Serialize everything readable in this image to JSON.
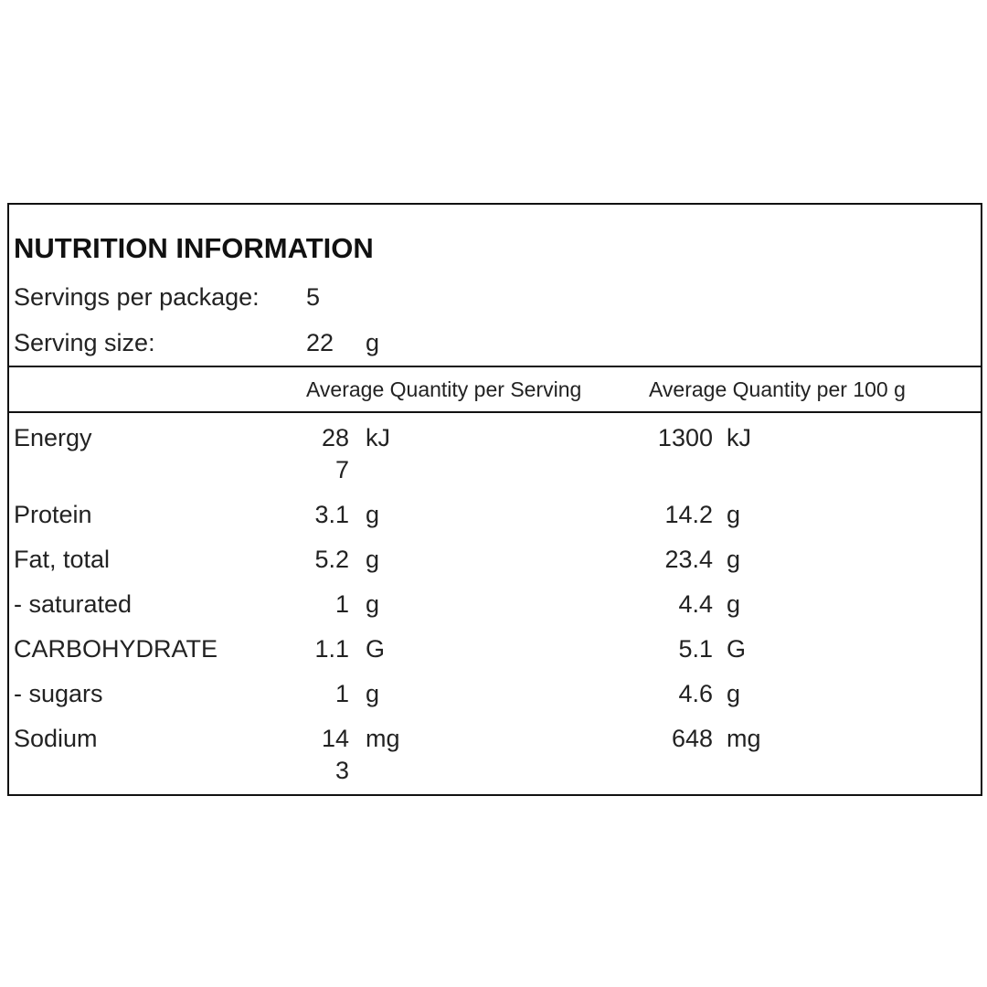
{
  "title": "NUTRITION INFORMATION",
  "servings": [
    {
      "label": "Servings per package:",
      "value": "5"
    },
    {
      "label": "Serving size:",
      "value": "22",
      "unit": "g"
    }
  ],
  "table": {
    "header": [
      "Average Quantity per Serving",
      "Average Quantity per 100 g"
    ],
    "rows": [
      {
        "name": "Energy",
        "serving": "287",
        "serving_unit": "kJ",
        "per100": "1300",
        "per100_unit": "kJ"
      },
      {
        "name": "Protein",
        "serving": "3.1",
        "serving_unit": "g",
        "per100": "14.2",
        "per100_unit": "g"
      },
      {
        "name": "Fat, total",
        "serving": "5.2",
        "serving_unit": "g",
        "per100": "23.4",
        "per100_unit": "g"
      },
      {
        "name": "- saturated",
        "serving": "1",
        "serving_unit": "g",
        "per100": "4.4",
        "per100_unit": "g"
      },
      {
        "name": "CARBOHYDRATE",
        "serving": "1.1",
        "serving_unit": "G",
        "per100": "5.1",
        "per100_unit": "G"
      },
      {
        "name": "- sugars",
        "serving": "1",
        "serving_unit": "g",
        "per100": "4.6",
        "per100_unit": "g"
      },
      {
        "name": "Sodium",
        "serving": "143",
        "serving_unit": "mg",
        "per100": "648",
        "per100_unit": "mg"
      }
    ]
  }
}
